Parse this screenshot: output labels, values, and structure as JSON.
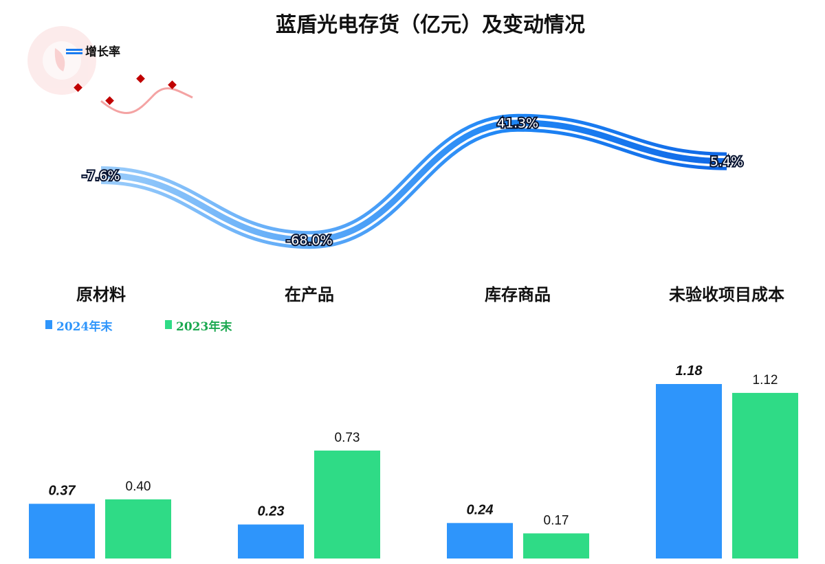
{
  "chart_data": {
    "type": "bar",
    "title": "蓝盾光电存货（亿元）及变动情况",
    "categories": [
      "原材料",
      "在产品",
      "库存商品",
      "未验收项目成本"
    ],
    "series": [
      {
        "name": "2024年末",
        "values": [
          0.37,
          0.23,
          0.24,
          1.18
        ],
        "labels": [
          "0.37",
          "0.23",
          "0.24",
          "1.18"
        ],
        "color": "#2e95fb"
      },
      {
        "name": "2023年末",
        "values": [
          0.4,
          0.73,
          0.17,
          1.12
        ],
        "labels": [
          "0.40",
          "0.73",
          "0.17",
          "1.12"
        ],
        "color": "#2fdb86"
      }
    ],
    "line_series": {
      "name": "增长率",
      "values": [
        -7.6,
        -68.0,
        41.3,
        5.4
      ],
      "labels": [
        "-7.6%",
        "-68.0%",
        "41.3%",
        "5.4%"
      ],
      "color": "#1a7bf0"
    },
    "legend_colors": {
      "2024年末": "#2e95fb",
      "2023年末": "#1aa84f"
    },
    "ylim_bars": [
      0,
      1.4
    ],
    "ylim_rate": [
      -80,
      50
    ],
    "grid": false,
    "legend_position": "top-left"
  }
}
